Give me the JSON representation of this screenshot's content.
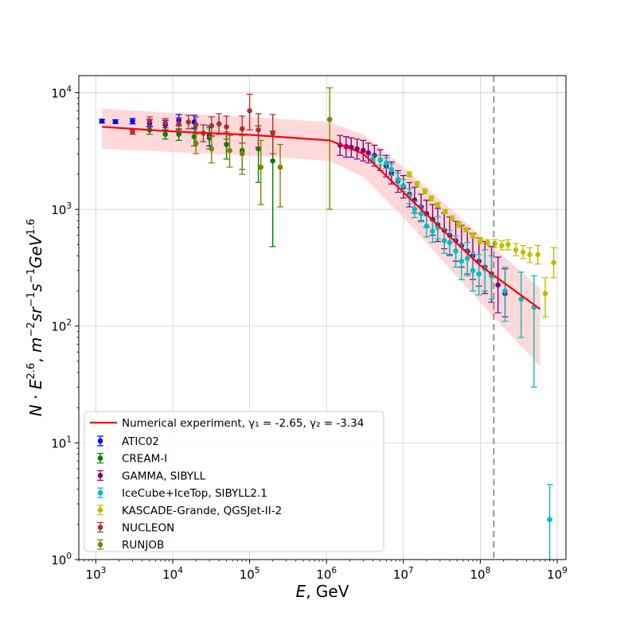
{
  "chart_data": {
    "type": "scatter",
    "x_scale": "log",
    "y_scale": "log",
    "xlim": [
      600,
      1300000000
    ],
    "ylim": [
      1,
      14000
    ],
    "grid": true,
    "legend_position": "lower-left",
    "xlabel_var": "E",
    "xlabel_unit": ", GeV",
    "ylabel_text": "N · E^2.6, m^-2 sr^-1 s^-1 GeV^1.6",
    "x_ticks": [
      {
        "value": 1000,
        "base": "10",
        "exp": "3"
      },
      {
        "value": 10000,
        "base": "10",
        "exp": "4"
      },
      {
        "value": 100000,
        "base": "10",
        "exp": "5"
      },
      {
        "value": 1000000,
        "base": "10",
        "exp": "6"
      },
      {
        "value": 10000000,
        "base": "10",
        "exp": "7"
      },
      {
        "value": 100000000,
        "base": "10",
        "exp": "8"
      },
      {
        "value": 1000000000,
        "base": "10",
        "exp": "9"
      }
    ],
    "y_ticks": [
      {
        "value": 1,
        "base": "10",
        "exp": "0"
      },
      {
        "value": 10,
        "base": "10",
        "exp": "1"
      },
      {
        "value": 100,
        "base": "10",
        "exp": "2"
      },
      {
        "value": 1000,
        "base": "10",
        "exp": "3"
      },
      {
        "value": 10000,
        "base": "10",
        "exp": "4"
      }
    ],
    "vline": {
      "x": 150000000,
      "color": "#808080"
    },
    "fit_line": {
      "label_prefix": "Numerical experiment, ",
      "gamma1_label": "γ₁ = -2.65",
      "gamma2_label": "γ₂ = -3.34",
      "color": "#ff0000",
      "points": [
        [
          1200,
          5100
        ],
        [
          3000,
          4900
        ],
        [
          10000,
          4650
        ],
        [
          100000,
          4350
        ],
        [
          1100000,
          3900
        ],
        [
          3000000,
          3000
        ],
        [
          10000000,
          1400
        ],
        [
          100000000,
          330
        ],
        [
          600000000,
          140
        ]
      ],
      "band_color": "#ffcccc",
      "band_upper": [
        [
          1200,
          7300
        ],
        [
          10000,
          6700
        ],
        [
          100000,
          6200
        ],
        [
          1100000,
          5600
        ],
        [
          3000000,
          4400
        ],
        [
          10000000,
          2300
        ],
        [
          100000000,
          600
        ],
        [
          600000000,
          210
        ]
      ],
      "band_lower": [
        [
          1200,
          3300
        ],
        [
          10000,
          3100
        ],
        [
          100000,
          2900
        ],
        [
          1100000,
          2600
        ],
        [
          3000000,
          1900
        ],
        [
          10000000,
          850
        ],
        [
          100000000,
          160
        ],
        [
          600000000,
          45
        ]
      ]
    },
    "series": [
      {
        "name": "ATIC02",
        "color": "#0000ff",
        "points": [
          [
            1200,
            5700,
            5500,
            5900
          ],
          [
            1800,
            5650,
            5450,
            5850
          ],
          [
            3000,
            5700,
            5400,
            6000
          ],
          [
            5000,
            5500,
            5100,
            5900
          ],
          [
            8000,
            5300,
            4800,
            5800
          ],
          [
            12000,
            5800,
            5200,
            6500
          ],
          [
            19000,
            5600,
            4900,
            6400
          ],
          [
            30000,
            4300,
            3500,
            5200
          ]
        ]
      },
      {
        "name": "CREAM-I",
        "color": "#008000",
        "points": [
          [
            5000,
            4800,
            4400,
            5200
          ],
          [
            8000,
            4400,
            4000,
            4800
          ],
          [
            12000,
            4400,
            3900,
            4900
          ],
          [
            19000,
            4200,
            3500,
            5000
          ],
          [
            30000,
            4100,
            3300,
            5000
          ],
          [
            50000,
            3600,
            2700,
            4600
          ],
          [
            80000,
            3200,
            2200,
            4400
          ],
          [
            130000,
            3300,
            1700,
            5200
          ],
          [
            200000,
            2600,
            480,
            4700
          ]
        ]
      },
      {
        "name": "GAMMA, SIBYLL",
        "color": "#800080",
        "points": [
          [
            1500000,
            3550,
            2900,
            4300
          ],
          [
            1800000,
            3450,
            2800,
            4200
          ],
          [
            2100000,
            3400,
            2800,
            4100
          ],
          [
            2500000,
            3300,
            2700,
            4000
          ],
          [
            3000000,
            3200,
            2600,
            3900
          ],
          [
            3500000,
            3050,
            2500,
            3700
          ],
          [
            4200000,
            2900,
            2350,
            3550
          ],
          [
            5000000,
            2650,
            2150,
            3250
          ],
          [
            6000000,
            2350,
            1900,
            2900
          ],
          [
            7000000,
            2050,
            1650,
            2550
          ],
          [
            8500000,
            1750,
            1400,
            2150
          ],
          [
            10000000,
            1550,
            1250,
            1950
          ],
          [
            12000000,
            1350,
            1050,
            1700
          ],
          [
            14000000,
            1200,
            930,
            1550
          ],
          [
            17000000,
            1050,
            800,
            1350
          ],
          [
            20000000,
            920,
            700,
            1200
          ],
          [
            24000000,
            820,
            600,
            1100
          ],
          [
            28000000,
            740,
            530,
            1020
          ],
          [
            34000000,
            660,
            460,
            930
          ],
          [
            40000000,
            600,
            410,
            860
          ],
          [
            48000000,
            540,
            360,
            790
          ],
          [
            57000000,
            490,
            320,
            730
          ],
          [
            68000000,
            440,
            280,
            680
          ],
          [
            80000000,
            400,
            250,
            620
          ],
          [
            96000000,
            360,
            220,
            570
          ],
          [
            115000000,
            320,
            190,
            530
          ],
          [
            140000000,
            280,
            160,
            480
          ],
          [
            170000000,
            225,
            130,
            390
          ],
          [
            210000000,
            190,
            120,
            310
          ]
        ]
      },
      {
        "name": "IceCube+IceTop, SIBYLL2.1",
        "color": "#00bfbf",
        "points": [
          [
            4000000,
            2700,
            2500,
            2900
          ],
          [
            5000000,
            2650,
            2400,
            2900
          ],
          [
            6000000,
            2500,
            2250,
            2750
          ],
          [
            7000000,
            2200,
            1950,
            2450
          ],
          [
            8500000,
            1800,
            1600,
            2050
          ],
          [
            10000000,
            1600,
            1420,
            1800
          ],
          [
            12000000,
            1300,
            1120,
            1500
          ],
          [
            14000000,
            1000,
            850,
            1180
          ],
          [
            17000000,
            920,
            780,
            1080
          ],
          [
            20000000,
            720,
            580,
            880
          ],
          [
            24000000,
            650,
            520,
            800
          ],
          [
            28000000,
            700,
            560,
            860
          ],
          [
            34000000,
            540,
            420,
            680
          ],
          [
            40000000,
            520,
            400,
            660
          ],
          [
            48000000,
            440,
            320,
            590
          ],
          [
            57000000,
            360,
            250,
            500
          ],
          [
            68000000,
            380,
            270,
            520
          ],
          [
            80000000,
            300,
            200,
            430
          ],
          [
            96000000,
            280,
            185,
            410
          ],
          [
            115000000,
            310,
            200,
            450
          ],
          [
            140000000,
            270,
            170,
            400
          ],
          [
            210000000,
            200,
            110,
            320
          ],
          [
            340000000,
            170,
            80,
            290
          ],
          [
            500000000,
            145,
            30,
            270
          ],
          [
            800000000,
            2.2,
            1.0,
            4.4
          ]
        ]
      },
      {
        "name": "KASCADE-Grande, QGSJet-II-2",
        "color": "#bfbf00",
        "points": [
          [
            12000000,
            2000,
            1900,
            2100
          ],
          [
            15000000,
            1650,
            1570,
            1730
          ],
          [
            19000000,
            1430,
            1360,
            1500
          ],
          [
            23000000,
            1240,
            1180,
            1300
          ],
          [
            28000000,
            1090,
            1040,
            1140
          ],
          [
            35000000,
            960,
            920,
            1000
          ],
          [
            43000000,
            840,
            800,
            880
          ],
          [
            53000000,
            740,
            700,
            780
          ],
          [
            65000000,
            670,
            640,
            700
          ],
          [
            80000000,
            600,
            570,
            630
          ],
          [
            100000000,
            540,
            510,
            570
          ],
          [
            125000000,
            520,
            490,
            550
          ],
          [
            155000000,
            510,
            470,
            550
          ],
          [
            190000000,
            490,
            450,
            540
          ],
          [
            230000000,
            500,
            450,
            550
          ],
          [
            290000000,
            450,
            400,
            510
          ],
          [
            360000000,
            430,
            380,
            490
          ],
          [
            440000000,
            410,
            350,
            470
          ],
          [
            560000000,
            410,
            340,
            490
          ],
          [
            700000000,
            190,
            120,
            260
          ],
          [
            900000000,
            350,
            260,
            470
          ]
        ]
      },
      {
        "name": "NUCLEON",
        "color": "#b03030",
        "points": [
          [
            3000,
            4600,
            4400,
            4800
          ],
          [
            5000,
            5700,
            5200,
            6200
          ],
          [
            8000,
            5500,
            5000,
            6000
          ],
          [
            12000,
            5400,
            4800,
            6100
          ],
          [
            16000,
            5600,
            4900,
            6400
          ],
          [
            20000,
            5300,
            4500,
            6200
          ],
          [
            25000,
            4500,
            3800,
            5300
          ],
          [
            32000,
            5200,
            4300,
            6200
          ],
          [
            40000,
            5400,
            4400,
            6600
          ],
          [
            50000,
            5100,
            4000,
            6300
          ],
          [
            80000,
            4900,
            3700,
            6300
          ],
          [
            100000,
            7000,
            4800,
            9700
          ],
          [
            130000,
            4800,
            3400,
            6600
          ],
          [
            200000,
            4500,
            3000,
            6500
          ]
        ]
      },
      {
        "name": "RUNJOB",
        "color": "#808000",
        "points": [
          [
            20000,
            3700,
            3000,
            4400
          ],
          [
            32000,
            3300,
            2500,
            4200
          ],
          [
            55000,
            3200,
            2300,
            4300
          ],
          [
            80000,
            3000,
            2000,
            4300
          ],
          [
            140000,
            2300,
            1100,
            3900
          ],
          [
            250000,
            2300,
            1050,
            3600
          ],
          [
            1100000,
            5900,
            1000,
            11000
          ]
        ]
      }
    ]
  }
}
